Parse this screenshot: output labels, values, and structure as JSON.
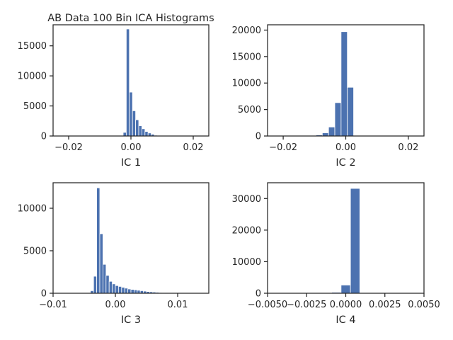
{
  "chart_data": [
    {
      "type": "bar",
      "title": "AB Data 100 Bin ICA Histograms",
      "xlabel": "IC 1",
      "ylabel": "",
      "xlim": [
        -0.025,
        0.025
      ],
      "ylim": [
        0,
        18500
      ],
      "xticks": [
        -0.02,
        0.0,
        0.02
      ],
      "xtick_labels": [
        "−0.02",
        "0.00",
        "0.02"
      ],
      "yticks": [
        0,
        5000,
        10000,
        15000
      ],
      "ytick_labels": [
        "0",
        "5000",
        "10000",
        "15000"
      ],
      "color": "#4c72b0",
      "bin_edges": [
        -0.0025,
        -0.0015,
        -0.0005,
        0.0005,
        0.0015,
        0.0025,
        0.0035,
        0.0045,
        0.0055,
        0.0065,
        0.0075,
        0.0085
      ],
      "values": [
        600,
        17800,
        7300,
        4200,
        2700,
        1700,
        1200,
        750,
        500,
        300,
        120
      ]
    },
    {
      "type": "bar",
      "title": "",
      "xlabel": "IC 2",
      "ylabel": "",
      "xlim": [
        -0.025,
        0.025
      ],
      "ylim": [
        0,
        21000
      ],
      "xticks": [
        -0.02,
        0.0,
        0.02
      ],
      "xtick_labels": [
        "−0.02",
        "0.00",
        "0.02"
      ],
      "yticks": [
        0,
        5000,
        10000,
        15000,
        20000
      ],
      "ytick_labels": [
        "0",
        "5000",
        "10000",
        "15000",
        "20000"
      ],
      "color": "#4c72b0",
      "bin_edges": [
        -0.0115,
        -0.0095,
        -0.0075,
        -0.0055,
        -0.0035,
        -0.0015,
        0.0005,
        0.0025
      ],
      "values": [
        80,
        200,
        600,
        1700,
        6300,
        19700,
        9200
      ]
    },
    {
      "type": "bar",
      "title": "",
      "xlabel": "IC 3",
      "ylabel": "",
      "xlim": [
        -0.01,
        0.015
      ],
      "ylim": [
        0,
        13000
      ],
      "xticks": [
        -0.01,
        0.0,
        0.01
      ],
      "xtick_labels": [
        "−0.01",
        "0.00",
        "0.01"
      ],
      "yticks": [
        0,
        5000,
        10000
      ],
      "ytick_labels": [
        "0",
        "5000",
        "10000"
      ],
      "color": "#4c72b0",
      "bin_edges": [
        -0.0045,
        -0.004,
        -0.0035,
        -0.003,
        -0.0025,
        -0.002,
        -0.0015,
        -0.001,
        -0.0005,
        0.0,
        0.0005,
        0.001,
        0.0015,
        0.002,
        0.0025,
        0.003,
        0.0035,
        0.004,
        0.0045,
        0.005,
        0.0055,
        0.006,
        0.0065,
        0.007,
        0.0075,
        0.008,
        0.0085,
        0.009,
        0.0095,
        0.01,
        0.0105,
        0.011
      ],
      "values": [
        50,
        300,
        2000,
        12400,
        7000,
        3400,
        2100,
        1400,
        1100,
        900,
        800,
        700,
        600,
        500,
        450,
        400,
        350,
        300,
        250,
        200,
        170,
        140,
        110,
        80,
        60,
        45,
        30,
        20,
        15,
        10,
        5
      ]
    },
    {
      "type": "bar",
      "title": "",
      "xlabel": "IC 4",
      "ylabel": "",
      "xlim": [
        -0.005,
        0.005
      ],
      "ylim": [
        0,
        35000
      ],
      "xticks": [
        -0.005,
        -0.0025,
        0.0,
        0.0025,
        0.005
      ],
      "xtick_labels": [
        "−0.0050",
        "−0.0025",
        "0.0000",
        "0.0025",
        "0.0050"
      ],
      "yticks": [
        0,
        10000,
        20000,
        30000
      ],
      "ytick_labels": [
        "0",
        "10000",
        "20000",
        "30000"
      ],
      "color": "#4c72b0",
      "bin_edges": [
        -0.0009,
        -0.0003,
        0.0003,
        0.0009
      ],
      "values": [
        300,
        2600,
        33200
      ]
    }
  ]
}
